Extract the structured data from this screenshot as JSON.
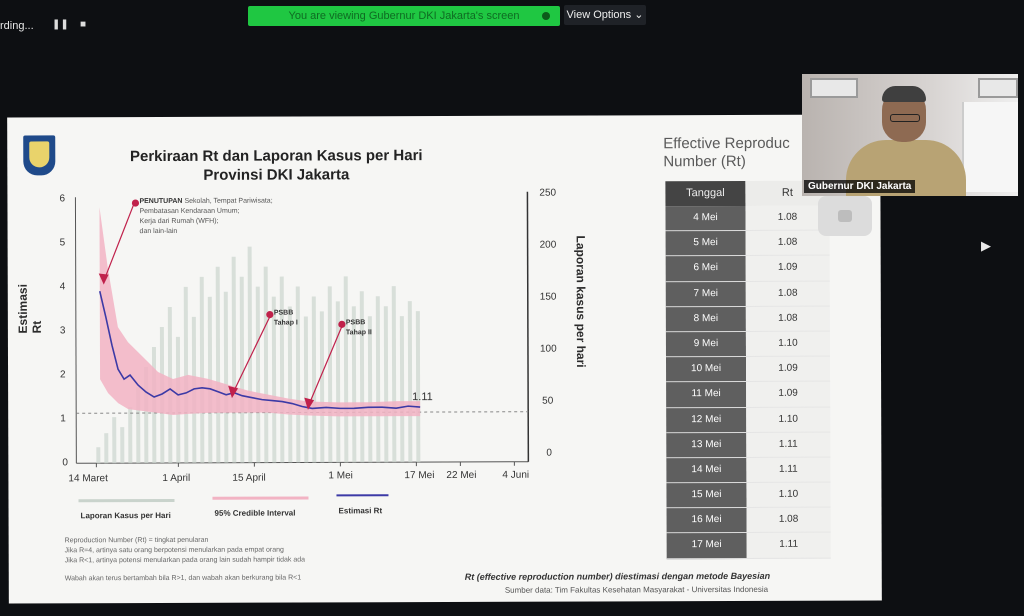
{
  "topbar": {
    "recording_label": "rding...",
    "pause_icon": "pause-icon",
    "stop_icon": "stop-icon",
    "share_banner": "You are viewing Gubernur DKI Jakarta's screen",
    "view_options": "View Options"
  },
  "slide": {
    "title_line1": "Perkiraan Rt dan Laporan Kasus per Hari",
    "title_line2": "Provinsi DKI Jakarta",
    "y_left_label": "Estimasi Rt",
    "y_right_label": "Laporan kasus per hari",
    "left_ticks": [
      "6",
      "5",
      "4",
      "3",
      "2",
      "1",
      "0"
    ],
    "right_ticks": [
      "250",
      "200",
      "150",
      "100",
      "50",
      "0"
    ],
    "x_ticks": [
      "14 Maret",
      "1 April",
      "15 April",
      "1 Mei",
      "17 Mei",
      "22 Mei",
      "4 Juni"
    ],
    "annotations": {
      "penutupan_title": "PENUTUPAN",
      "penutupan_text1": "Sekolah, Tempat Pariwisata;",
      "penutupan_text2": "Pembatasan Kendaraan Umum;",
      "penutupan_text3": "Kerja dari Rumah (WFH);",
      "penutupan_text4": "dan lain-lain",
      "psbb1_line1": "PSBB",
      "psbb1_line2": "Tahap I",
      "psbb2_line1": "PSBB",
      "psbb2_line2": "Tahap II",
      "last_value": "1.11"
    },
    "legend": {
      "cases": "Laporan Kasus per Hari",
      "interval": "95% Credible Interval",
      "estimate": "Estimasi Rt"
    },
    "footnotes": [
      "Reproduction Number (Rt) = tingkat penularan",
      "Jika R=4, artinya satu orang berpotensi menularkan pada empat orang",
      "Jika R<1, artinya potensi menularkan pada orang lain sudah hampir tidak ada",
      "Wabah akan terus bertambah bila R>1, dan wabah akan berkurang bila R<1"
    ],
    "method_note": "Rt (effective reproduction number) diestimasi dengan metode Bayesian",
    "source": "Sumber data: Tim Fakultas Kesehatan Masyarakat - Universitas Indonesia",
    "table_title_line1": "Effective Reproduc",
    "table_title_line2": "Number (Rt)",
    "table_header": [
      "Tanggal",
      "Rt"
    ],
    "table_rows": [
      [
        "4 Mei",
        "1.08"
      ],
      [
        "5 Mei",
        "1.08"
      ],
      [
        "6 Mei",
        "1.09"
      ],
      [
        "7 Mei",
        "1.08"
      ],
      [
        "8 Mei",
        "1.08"
      ],
      [
        "9 Mei",
        "1.10"
      ],
      [
        "10 Mei",
        "1.09"
      ],
      [
        "11 Mei",
        "1.09"
      ],
      [
        "12 Mei",
        "1.10"
      ],
      [
        "13 Mei",
        "1.11"
      ],
      [
        "14 Mei",
        "1.11"
      ],
      [
        "15 Mei",
        "1.10"
      ],
      [
        "16 Mei",
        "1.08"
      ],
      [
        "17 Mei",
        "1.11"
      ]
    ]
  },
  "video": {
    "name_tag": "Gubernur DKI Jakarta"
  },
  "colors": {
    "banner": "#1fc742",
    "interval": "#f2b3c3",
    "estimate": "#3c3aa6",
    "cases": "#c9d3cc",
    "annotation_dot": "#c0214b"
  }
}
